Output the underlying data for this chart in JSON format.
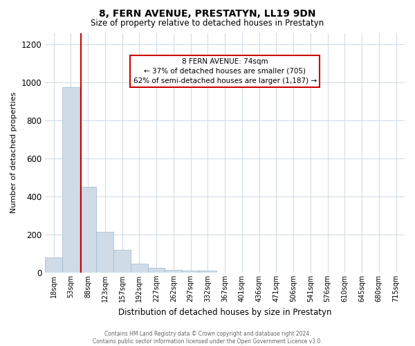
{
  "title": "8, FERN AVENUE, PRESTATYN, LL19 9DN",
  "subtitle": "Size of property relative to detached houses in Prestatyn",
  "xlabel": "Distribution of detached houses by size in Prestatyn",
  "ylabel": "Number of detached properties",
  "categories": [
    "18sqm",
    "53sqm",
    "88sqm",
    "123sqm",
    "157sqm",
    "192sqm",
    "227sqm",
    "262sqm",
    "297sqm",
    "332sqm",
    "367sqm",
    "401sqm",
    "436sqm",
    "471sqm",
    "506sqm",
    "541sqm",
    "576sqm",
    "610sqm",
    "645sqm",
    "680sqm",
    "715sqm"
  ],
  "values": [
    80,
    975,
    450,
    215,
    120,
    47,
    25,
    15,
    12,
    10,
    0,
    0,
    0,
    0,
    0,
    0,
    0,
    0,
    0,
    0,
    0
  ],
  "bar_color": "#cfdce8",
  "bar_edgecolor": "#9ab5cc",
  "red_line_color": "#cc0000",
  "ylim": [
    0,
    1260
  ],
  "yticks": [
    0,
    200,
    400,
    600,
    800,
    1000,
    1200
  ],
  "annotation_line1": "8 FERN AVENUE: 74sqm",
  "annotation_line2": "← 37% of detached houses are smaller (705)",
  "annotation_line3": "62% of semi-detached houses are larger (1,187) →",
  "annotation_box_color": "#ffffff",
  "annotation_box_edgecolor": "#cc0000",
  "footer_line1": "Contains HM Land Registry data © Crown copyright and database right 2024.",
  "footer_line2": "Contains public sector information licensed under the Open Government Licence v3.0.",
  "background_color": "#ffffff",
  "grid_color": "#ccd8e4",
  "title_fontsize": 10,
  "subtitle_fontsize": 8.5
}
